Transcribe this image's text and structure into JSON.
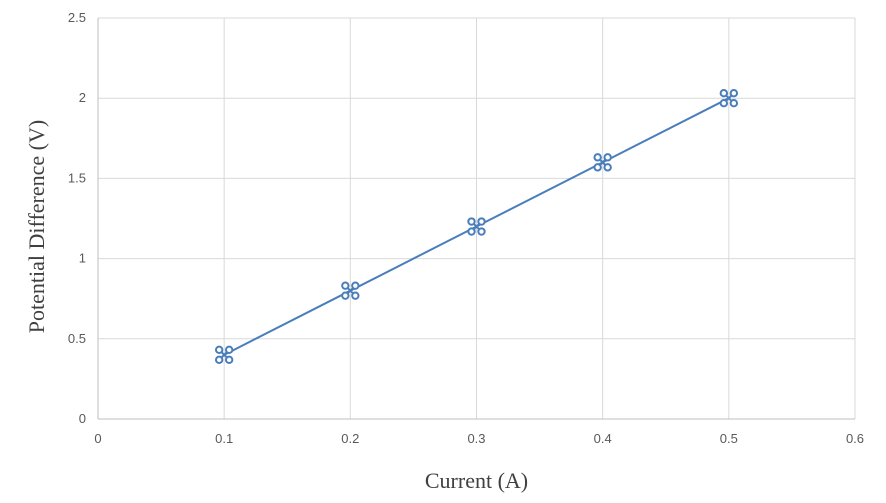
{
  "chart_data": {
    "type": "scatter",
    "title": "",
    "xlabel": "Current (A)",
    "ylabel": "Potential Difference (V)",
    "xlim": [
      0,
      0.6
    ],
    "ylim": [
      0,
      2.5
    ],
    "xticks": [
      "0",
      "0.1",
      "0.2",
      "0.3",
      "0.4",
      "0.5",
      "0.6"
    ],
    "yticks": [
      "0",
      "0.5",
      "1",
      "1.5",
      "2",
      "2.5"
    ],
    "grid": true,
    "series": [
      {
        "x": [
          0.1,
          0.2,
          0.3,
          0.4,
          0.5
        ],
        "y": [
          0.4,
          0.8,
          1.2,
          1.6,
          2.0
        ],
        "color": "#4a7ebb",
        "connected": true,
        "marker": "cluster-circles"
      }
    ]
  }
}
